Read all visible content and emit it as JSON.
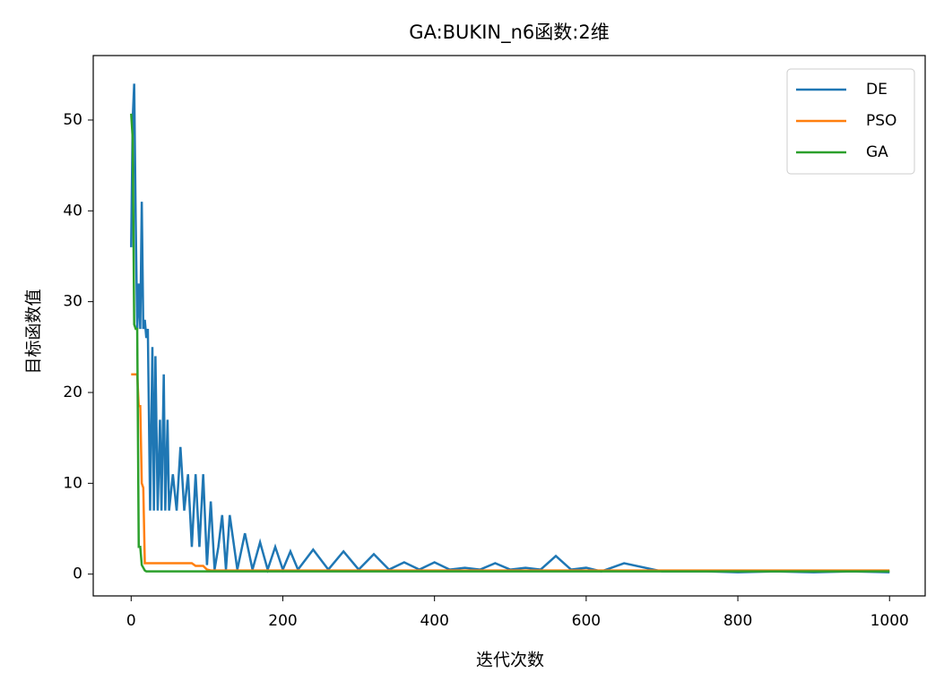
{
  "chart_data": {
    "type": "line",
    "title": "GA:BUKIN_n6函数:2维",
    "x_label": "迭代次数",
    "y_label": "目标函数值",
    "x": [
      0,
      2,
      4,
      6,
      8,
      10,
      12,
      14,
      16,
      18,
      20,
      22,
      25,
      28,
      30,
      32,
      35,
      38,
      40,
      43,
      45,
      48,
      50,
      55,
      60,
      65,
      70,
      75,
      80,
      85,
      90,
      95,
      100,
      105,
      110,
      115,
      120,
      125,
      130,
      140,
      150,
      160,
      170,
      180,
      190,
      200,
      210,
      220,
      240,
      260,
      280,
      300,
      320,
      340,
      360,
      380,
      400,
      420,
      440,
      460,
      480,
      500,
      520,
      540,
      560,
      580,
      600,
      620,
      650,
      700,
      760,
      800,
      850,
      900,
      950,
      1000
    ],
    "series": [
      {
        "name": "DE",
        "color": "#1f77b4",
        "values": [
          36,
          50,
          54,
          39,
          27,
          32,
          27,
          41,
          27,
          28,
          26,
          27,
          7,
          25,
          7,
          24,
          7,
          17,
          7,
          22,
          7,
          17,
          7,
          11,
          7,
          14,
          7,
          11,
          3,
          11,
          3,
          11,
          1,
          8,
          0.5,
          3,
          6.5,
          0.5,
          6.5,
          0.5,
          4.5,
          0.5,
          3.5,
          0.5,
          3,
          0.5,
          2.5,
          0.5,
          2.7,
          0.5,
          2.5,
          0.5,
          2.2,
          0.5,
          1.3,
          0.5,
          1.3,
          0.5,
          0.7,
          0.5,
          1.2,
          0.5,
          0.7,
          0.5,
          2,
          0.5,
          0.7,
          0.3,
          1.2,
          0.3,
          0.3,
          0.2,
          0.3,
          0.2,
          0.3,
          0.2
        ]
      },
      {
        "name": "PSO",
        "color": "#ff7f0e",
        "values": [
          22,
          22,
          22,
          22,
          22,
          18.5,
          18.5,
          10,
          9.5,
          1.2,
          1.2,
          1.2,
          1.2,
          1.2,
          1.2,
          1.2,
          1.2,
          1.2,
          1.2,
          1.2,
          1.2,
          1.2,
          1.2,
          1.2,
          1.2,
          1.2,
          1.2,
          1.2,
          1.2,
          0.9,
          0.9,
          0.9,
          0.5,
          0.4,
          0.4,
          0.4,
          0.4,
          0.4,
          0.4,
          0.4,
          0.4,
          0.4,
          0.4,
          0.4,
          0.4,
          0.4,
          0.4,
          0.4,
          0.4,
          0.4,
          0.4,
          0.4,
          0.4,
          0.4,
          0.4,
          0.4,
          0.4,
          0.4,
          0.4,
          0.4,
          0.4,
          0.4,
          0.4,
          0.4,
          0.4,
          0.4,
          0.4,
          0.4,
          0.4,
          0.4,
          0.4,
          0.4,
          0.4,
          0.4,
          0.4,
          0.4
        ]
      },
      {
        "name": "GA",
        "color": "#2ca02c",
        "values": [
          50.7,
          48,
          27.5,
          27,
          27,
          3,
          3,
          1,
          0.7,
          0.4,
          0.3,
          0.3,
          0.3,
          0.3,
          0.3,
          0.3,
          0.3,
          0.3,
          0.3,
          0.3,
          0.3,
          0.3,
          0.3,
          0.3,
          0.3,
          0.3,
          0.3,
          0.3,
          0.3,
          0.3,
          0.3,
          0.3,
          0.3,
          0.3,
          0.3,
          0.3,
          0.3,
          0.3,
          0.3,
          0.3,
          0.3,
          0.3,
          0.3,
          0.3,
          0.3,
          0.3,
          0.3,
          0.3,
          0.3,
          0.3,
          0.3,
          0.3,
          0.3,
          0.3,
          0.3,
          0.3,
          0.3,
          0.3,
          0.3,
          0.3,
          0.3,
          0.3,
          0.3,
          0.3,
          0.3,
          0.3,
          0.3,
          0.3,
          0.3,
          0.3,
          0.3,
          0.3,
          0.3,
          0.3,
          0.3,
          0.3
        ]
      }
    ],
    "xlim": [
      -50,
      1047
    ],
    "xticks": [
      0,
      200,
      400,
      600,
      800,
      1000
    ],
    "ylim": [
      -2.4,
      57.1
    ],
    "yticks": [
      0,
      10,
      20,
      30,
      40,
      50
    ],
    "legend": "upper right"
  }
}
